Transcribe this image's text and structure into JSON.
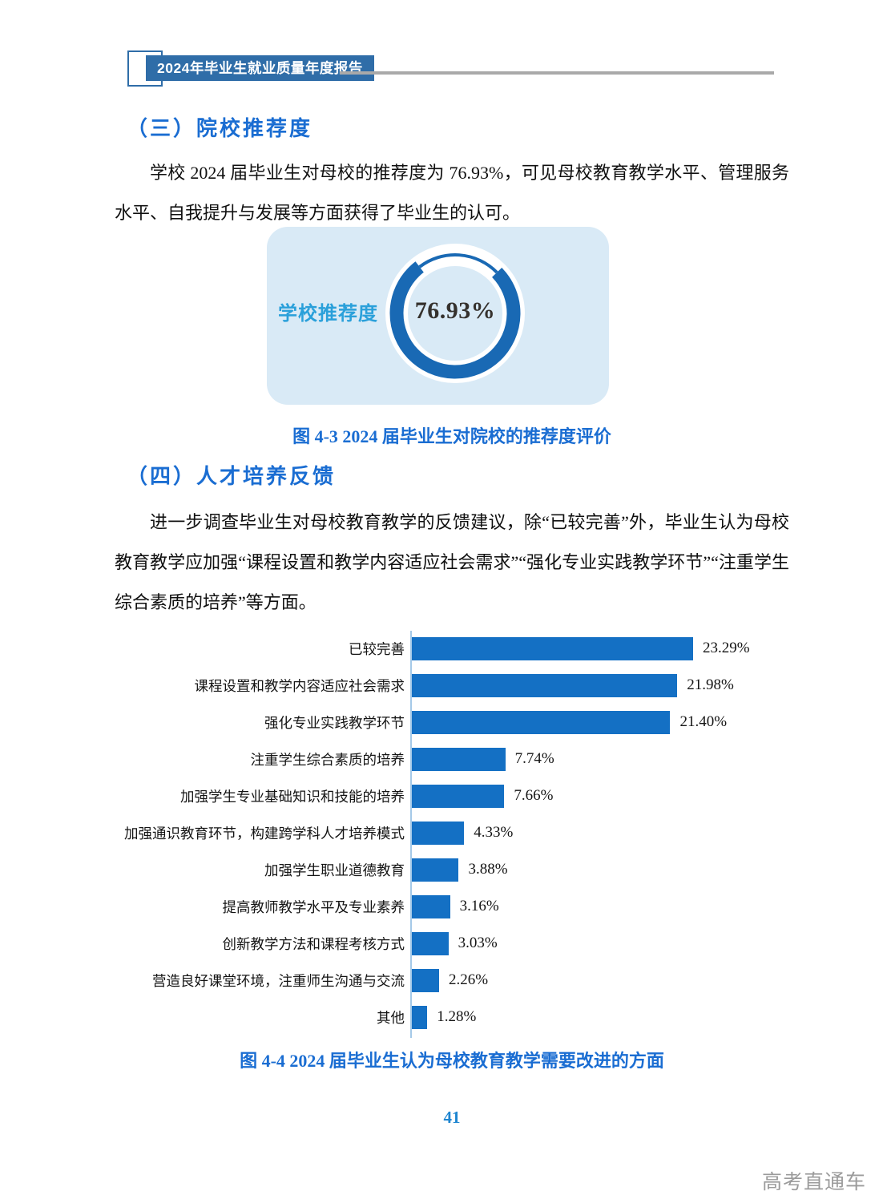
{
  "header": {
    "badge": "2024年毕业生就业质量年度报告"
  },
  "section3": {
    "title": "（三）院校推荐度",
    "paragraph": "学校 2024 届毕业生对母校的推荐度为 76.93%，可见母校教育教学水平、管理服务水平、自我提升与发展等方面获得了毕业生的认可。"
  },
  "section4": {
    "title": "（四）人才培养反馈",
    "paragraph": "进一步调查毕业生对母校教育教学的反馈建议，除“已较完善”外，毕业生认为母校教育教学应加强“课程设置和教学内容适应社会需求”“强化专业实践教学环节”“注重学生综合素质的培养”等方面。"
  },
  "figures": {
    "fig43_caption": "图 4-3  2024 届毕业生对院校的推荐度评价",
    "fig44_caption": "图 4-4 2024 届毕业生认为母校教育教学需要改进的方面"
  },
  "donut": {
    "label": "学校推荐度",
    "center_text": "76.93%"
  },
  "footer": {
    "page_number": "41",
    "watermark": "高考直通车"
  },
  "colors": {
    "heading_blue": "#1a6dd2",
    "badge_blue": "#2f6da8",
    "donut_blue": "#1969b4",
    "bar_blue": "#1470c4",
    "panel_light_blue": "#d9eaf6",
    "donut_label_azure": "#2aa0da",
    "page_number_blue": "#1e85d0",
    "watermark_gray": "#9b9b9b",
    "axis_light_blue": "#a5c9e8",
    "header_rule_gray": "#a9a9a9"
  },
  "chart_data": [
    {
      "type": "pie",
      "subtype": "donut-gauge",
      "title": "图 4-3 2024 届毕业生对院校的推荐度评价",
      "label": "学校推荐度",
      "value": 76.93,
      "remainder": 23.07,
      "unit": "%",
      "center_text": "76.93%",
      "ring_color": "#1969b4",
      "legend": false
    },
    {
      "type": "bar",
      "orientation": "horizontal",
      "title": "图 4-4 2024 届毕业生认为母校教育教学需要改进的方面",
      "categories": [
        "已较完善",
        "课程设置和教学内容适应社会需求",
        "强化专业实践教学环节",
        "注重学生综合素质的培养",
        "加强学生专业基础知识和技能的培养",
        "加强通识教育环节，构建跨学科人才培养模式",
        "加强学生职业道德教育",
        "提高教师教学水平及专业素养",
        "创新教学方法和课程考核方式",
        "营造良好课堂环境，注重师生沟通与交流",
        "其他"
      ],
      "values": [
        23.29,
        21.98,
        21.4,
        7.74,
        7.66,
        4.33,
        3.88,
        3.16,
        3.03,
        2.26,
        1.28
      ],
      "value_labels": [
        "23.29%",
        "21.98%",
        "21.40%",
        "7.74%",
        "7.66%",
        "4.33%",
        "3.88%",
        "3.16%",
        "3.03%",
        "2.26%",
        "1.28%"
      ],
      "bar_color": "#1470c4",
      "xlabel": "",
      "ylabel": "",
      "xlim": [
        0,
        24
      ],
      "grid": false,
      "legend": false
    }
  ]
}
